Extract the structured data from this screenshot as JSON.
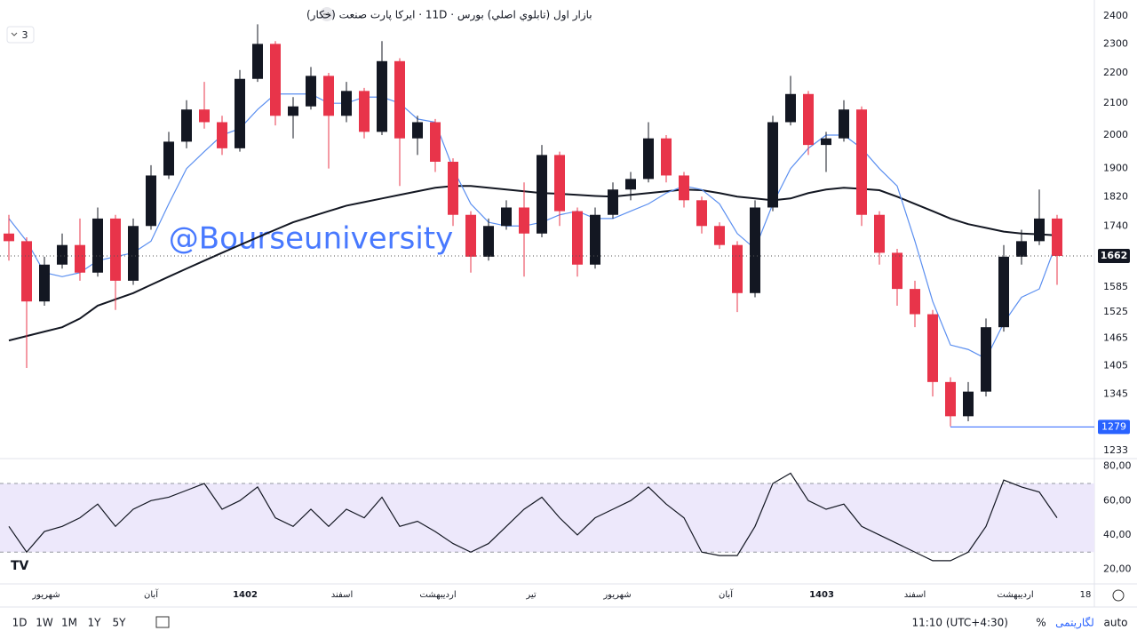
{
  "header": {
    "title": "بازار اول (تابلوي اصلي) بورس · 11D · ایرکا پارت صنعت (خکار)",
    "indicator_count": "3"
  },
  "chart_data": [
    {
      "type": "candlestick",
      "watermark": "@Bourseuniversity",
      "open": [
        1720,
        1700,
        1550,
        1640,
        1690,
        1620,
        1760,
        1600,
        1740,
        1880,
        1980,
        2080,
        2040,
        1960,
        2180,
        2300,
        2060,
        2090,
        2190,
        2060,
        2140,
        2010,
        2240,
        1990,
        2040,
        1920,
        1770,
        1660,
        1740,
        1790,
        1720,
        1940,
        1780,
        1640,
        1770,
        1840,
        1870,
        1990,
        1880,
        1810,
        1740,
        1690,
        1570,
        1790,
        2040,
        2130,
        1970,
        1990,
        2080,
        1770,
        1670,
        1580,
        1520,
        1370,
        1300,
        1350,
        1490,
        1660,
        1700,
        1760
      ],
      "high": [
        1770,
        1710,
        1660,
        1720,
        1760,
        1790,
        1770,
        1760,
        1910,
        2010,
        2110,
        2170,
        2060,
        2210,
        2370,
        2310,
        2120,
        2220,
        2200,
        2170,
        2150,
        2310,
        2250,
        2060,
        2050,
        1930,
        1780,
        1760,
        1810,
        1860,
        1970,
        1950,
        1790,
        1790,
        1860,
        1890,
        2040,
        2000,
        1890,
        1820,
        1750,
        1700,
        1810,
        2060,
        2190,
        2140,
        2010,
        2110,
        2090,
        1780,
        1680,
        1600,
        1530,
        1380,
        1370,
        1510,
        1690,
        1730,
        1840,
        1770
      ],
      "low": [
        1650,
        1400,
        1540,
        1630,
        1600,
        1610,
        1530,
        1590,
        1730,
        1870,
        1960,
        2020,
        1940,
        1950,
        2170,
        2030,
        1990,
        2080,
        1900,
        2040,
        1990,
        2000,
        1850,
        1940,
        1890,
        1740,
        1620,
        1650,
        1730,
        1610,
        1710,
        1740,
        1610,
        1630,
        1760,
        1810,
        1860,
        1860,
        1790,
        1720,
        1680,
        1525,
        1560,
        1780,
        2030,
        1940,
        1890,
        1980,
        1740,
        1640,
        1540,
        1490,
        1340,
        1280,
        1290,
        1340,
        1480,
        1640,
        1690,
        1590
      ],
      "close": [
        1700,
        1550,
        1640,
        1690,
        1620,
        1760,
        1600,
        1740,
        1880,
        1980,
        2080,
        2040,
        1960,
        2180,
        2300,
        2060,
        2090,
        2190,
        2060,
        2140,
        2010,
        2240,
        1990,
        2040,
        1920,
        1770,
        1660,
        1740,
        1790,
        1720,
        1940,
        1780,
        1640,
        1770,
        1840,
        1870,
        1990,
        1880,
        1810,
        1740,
        1690,
        1570,
        1790,
        2040,
        2130,
        1970,
        1990,
        2080,
        1770,
        1670,
        1580,
        1520,
        1370,
        1300,
        1350,
        1490,
        1660,
        1700,
        1760,
        1662
      ],
      "up_color": "#131722",
      "down_color": "#e8344a",
      "series": [
        {
          "color": "#131722",
          "values": [
            1460,
            1470,
            1480,
            1490,
            1510,
            1540,
            1555,
            1570,
            1590,
            1610,
            1630,
            1650,
            1670,
            1690,
            1710,
            1730,
            1750,
            1765,
            1780,
            1795,
            1805,
            1815,
            1825,
            1835,
            1845,
            1850,
            1850,
            1845,
            1840,
            1835,
            1830,
            1828,
            1825,
            1822,
            1820,
            1825,
            1830,
            1835,
            1840,
            1838,
            1830,
            1820,
            1815,
            1810,
            1815,
            1830,
            1840,
            1845,
            1842,
            1838,
            1820,
            1800,
            1780,
            1760,
            1745,
            1735,
            1725,
            1720,
            1718,
            1715
          ]
        },
        {
          "color": "#5b8ff0",
          "values": [
            1760,
            1700,
            1620,
            1610,
            1620,
            1650,
            1660,
            1670,
            1700,
            1800,
            1900,
            1950,
            2000,
            2020,
            2080,
            2130,
            2130,
            2130,
            2100,
            2100,
            2120,
            2120,
            2100,
            2050,
            2040,
            1900,
            1800,
            1750,
            1740,
            1740,
            1750,
            1770,
            1780,
            1760,
            1760,
            1780,
            1800,
            1830,
            1850,
            1840,
            1800,
            1720,
            1680,
            1800,
            1900,
            1960,
            2000,
            2000,
            1960,
            1900,
            1850,
            1700,
            1550,
            1450,
            1440,
            1420,
            1500,
            1560,
            1580,
            1700
          ]
        }
      ],
      "hline": 1279,
      "hline_color": "#2962ff",
      "log_scale": true,
      "grid": false,
      "ylim": [
        1220,
        2460
      ],
      "yticks": [
        1233,
        1345,
        1405,
        1465,
        1525,
        1585,
        1740,
        1820,
        1900,
        2000,
        2100,
        2200,
        2300,
        2400
      ],
      "xticks": [
        {
          "value": 2.1,
          "label": "شهریور"
        },
        {
          "value": 8,
          "label": "آبان"
        },
        {
          "value": 13.3,
          "label": "1402"
        },
        {
          "value": 18.75,
          "label": "اسفند"
        },
        {
          "value": 24.15,
          "label": "اردیبهشت"
        },
        {
          "value": 29.4,
          "label": "تیر"
        },
        {
          "value": 34.25,
          "label": "شهریور"
        },
        {
          "value": 40.35,
          "label": "آبان"
        },
        {
          "value": 45.75,
          "label": "1403"
        },
        {
          "value": 51,
          "label": "اسفند"
        },
        {
          "value": 56.65,
          "label": "اردیبهشت"
        },
        {
          "value": 60.6,
          "label": "18"
        }
      ]
    },
    {
      "type": "line",
      "series": [
        {
          "color": "#131722",
          "values": [
            45,
            30,
            42,
            45,
            50,
            58,
            45,
            55,
            60,
            62,
            66,
            70,
            55,
            60,
            68,
            50,
            45,
            55,
            45,
            55,
            50,
            62,
            45,
            48,
            42,
            35,
            30,
            35,
            45,
            55,
            62,
            50,
            40,
            50,
            55,
            60,
            68,
            58,
            50,
            30,
            28,
            28,
            45,
            70,
            76,
            60,
            55,
            58,
            45,
            40,
            35,
            30,
            25,
            25,
            30,
            45,
            72,
            68,
            65,
            50
          ]
        }
      ],
      "bands": [
        30,
        70
      ],
      "band_color": "#ede8fb",
      "ylim": [
        12,
        84
      ],
      "yticks": [
        {
          "value": 20,
          "label": "20,00"
        },
        {
          "value": 40,
          "label": "40,00"
        },
        {
          "value": 60,
          "label": "60,00"
        },
        {
          "value": 80,
          "label": "80,00"
        }
      ]
    }
  ],
  "footer": {
    "ranges": [
      "1D",
      "1W",
      "1M",
      "1Y",
      "5Y"
    ],
    "time": "11:10 (UTC+4:30)",
    "percent": "%",
    "log": "لگاریتمی",
    "auto": "auto"
  }
}
